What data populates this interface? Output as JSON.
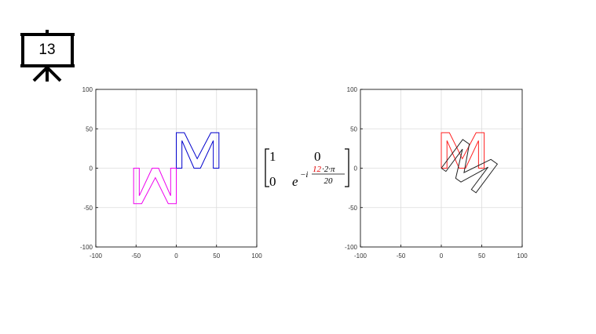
{
  "slide_number": "13",
  "matrix": {
    "rows": [
      [
        "1",
        "0"
      ],
      [
        "0",
        "e"
      ]
    ],
    "exponent_prefix": "−i",
    "numerator_highlight": "12",
    "numerator_rest": "·2·π",
    "denominator": "20"
  },
  "chart_data": [
    {
      "type": "line",
      "xlim": [
        -100,
        100
      ],
      "ylim": [
        -100,
        100
      ],
      "xticks": [
        -100,
        -50,
        0,
        50,
        100
      ],
      "yticks": [
        -100,
        -50,
        0,
        50,
        100
      ],
      "grid": true,
      "series": [
        {
          "color": "#0000cc",
          "x": [
            0,
            0,
            10,
            26,
            43,
            53,
            53,
            46,
            46,
            30,
            22,
            7,
            7,
            0
          ],
          "values": [
            0,
            45,
            45,
            12,
            45,
            45,
            0,
            0,
            35,
            0,
            0,
            35,
            0,
            0
          ]
        },
        {
          "color": "#ee00ee",
          "x": [
            0,
            0,
            -10,
            -26,
            -43,
            -53,
            -53,
            -46,
            -46,
            -30,
            -22,
            -7,
            -7,
            0
          ],
          "values": [
            0,
            -45,
            -45,
            -12,
            -45,
            -45,
            0,
            0,
            -35,
            0,
            0,
            -35,
            0,
            0
          ]
        }
      ]
    },
    {
      "type": "line",
      "xlim": [
        -100,
        100
      ],
      "ylim": [
        -100,
        100
      ],
      "xticks": [
        -100,
        -50,
        0,
        50,
        100
      ],
      "yticks": [
        -100,
        -50,
        0,
        50,
        100
      ],
      "grid": true,
      "series": [
        {
          "color": "#ff2020",
          "x": [
            0,
            0,
            10,
            26,
            43,
            53,
            53,
            46,
            46,
            30,
            22,
            7,
            7,
            0
          ],
          "values": [
            0,
            45,
            45,
            12,
            45,
            45,
            0,
            0,
            35,
            0,
            0,
            35,
            0,
            0
          ]
        },
        {
          "color": "#222222",
          "x": [
            0,
            26.5,
            34.6,
            28.1,
            61.3,
            69.3,
            42.9,
            37.2,
            57.8,
            24.3,
            17.8,
            26.2,
            5.7,
            0
          ],
          "values": [
            0,
            36.4,
            30.5,
            -5.6,
            11.1,
            5.2,
            -31.2,
            -27.0,
            1.3,
            -17.6,
            -12.9,
            24.2,
            -4.1,
            0
          ]
        }
      ]
    }
  ]
}
